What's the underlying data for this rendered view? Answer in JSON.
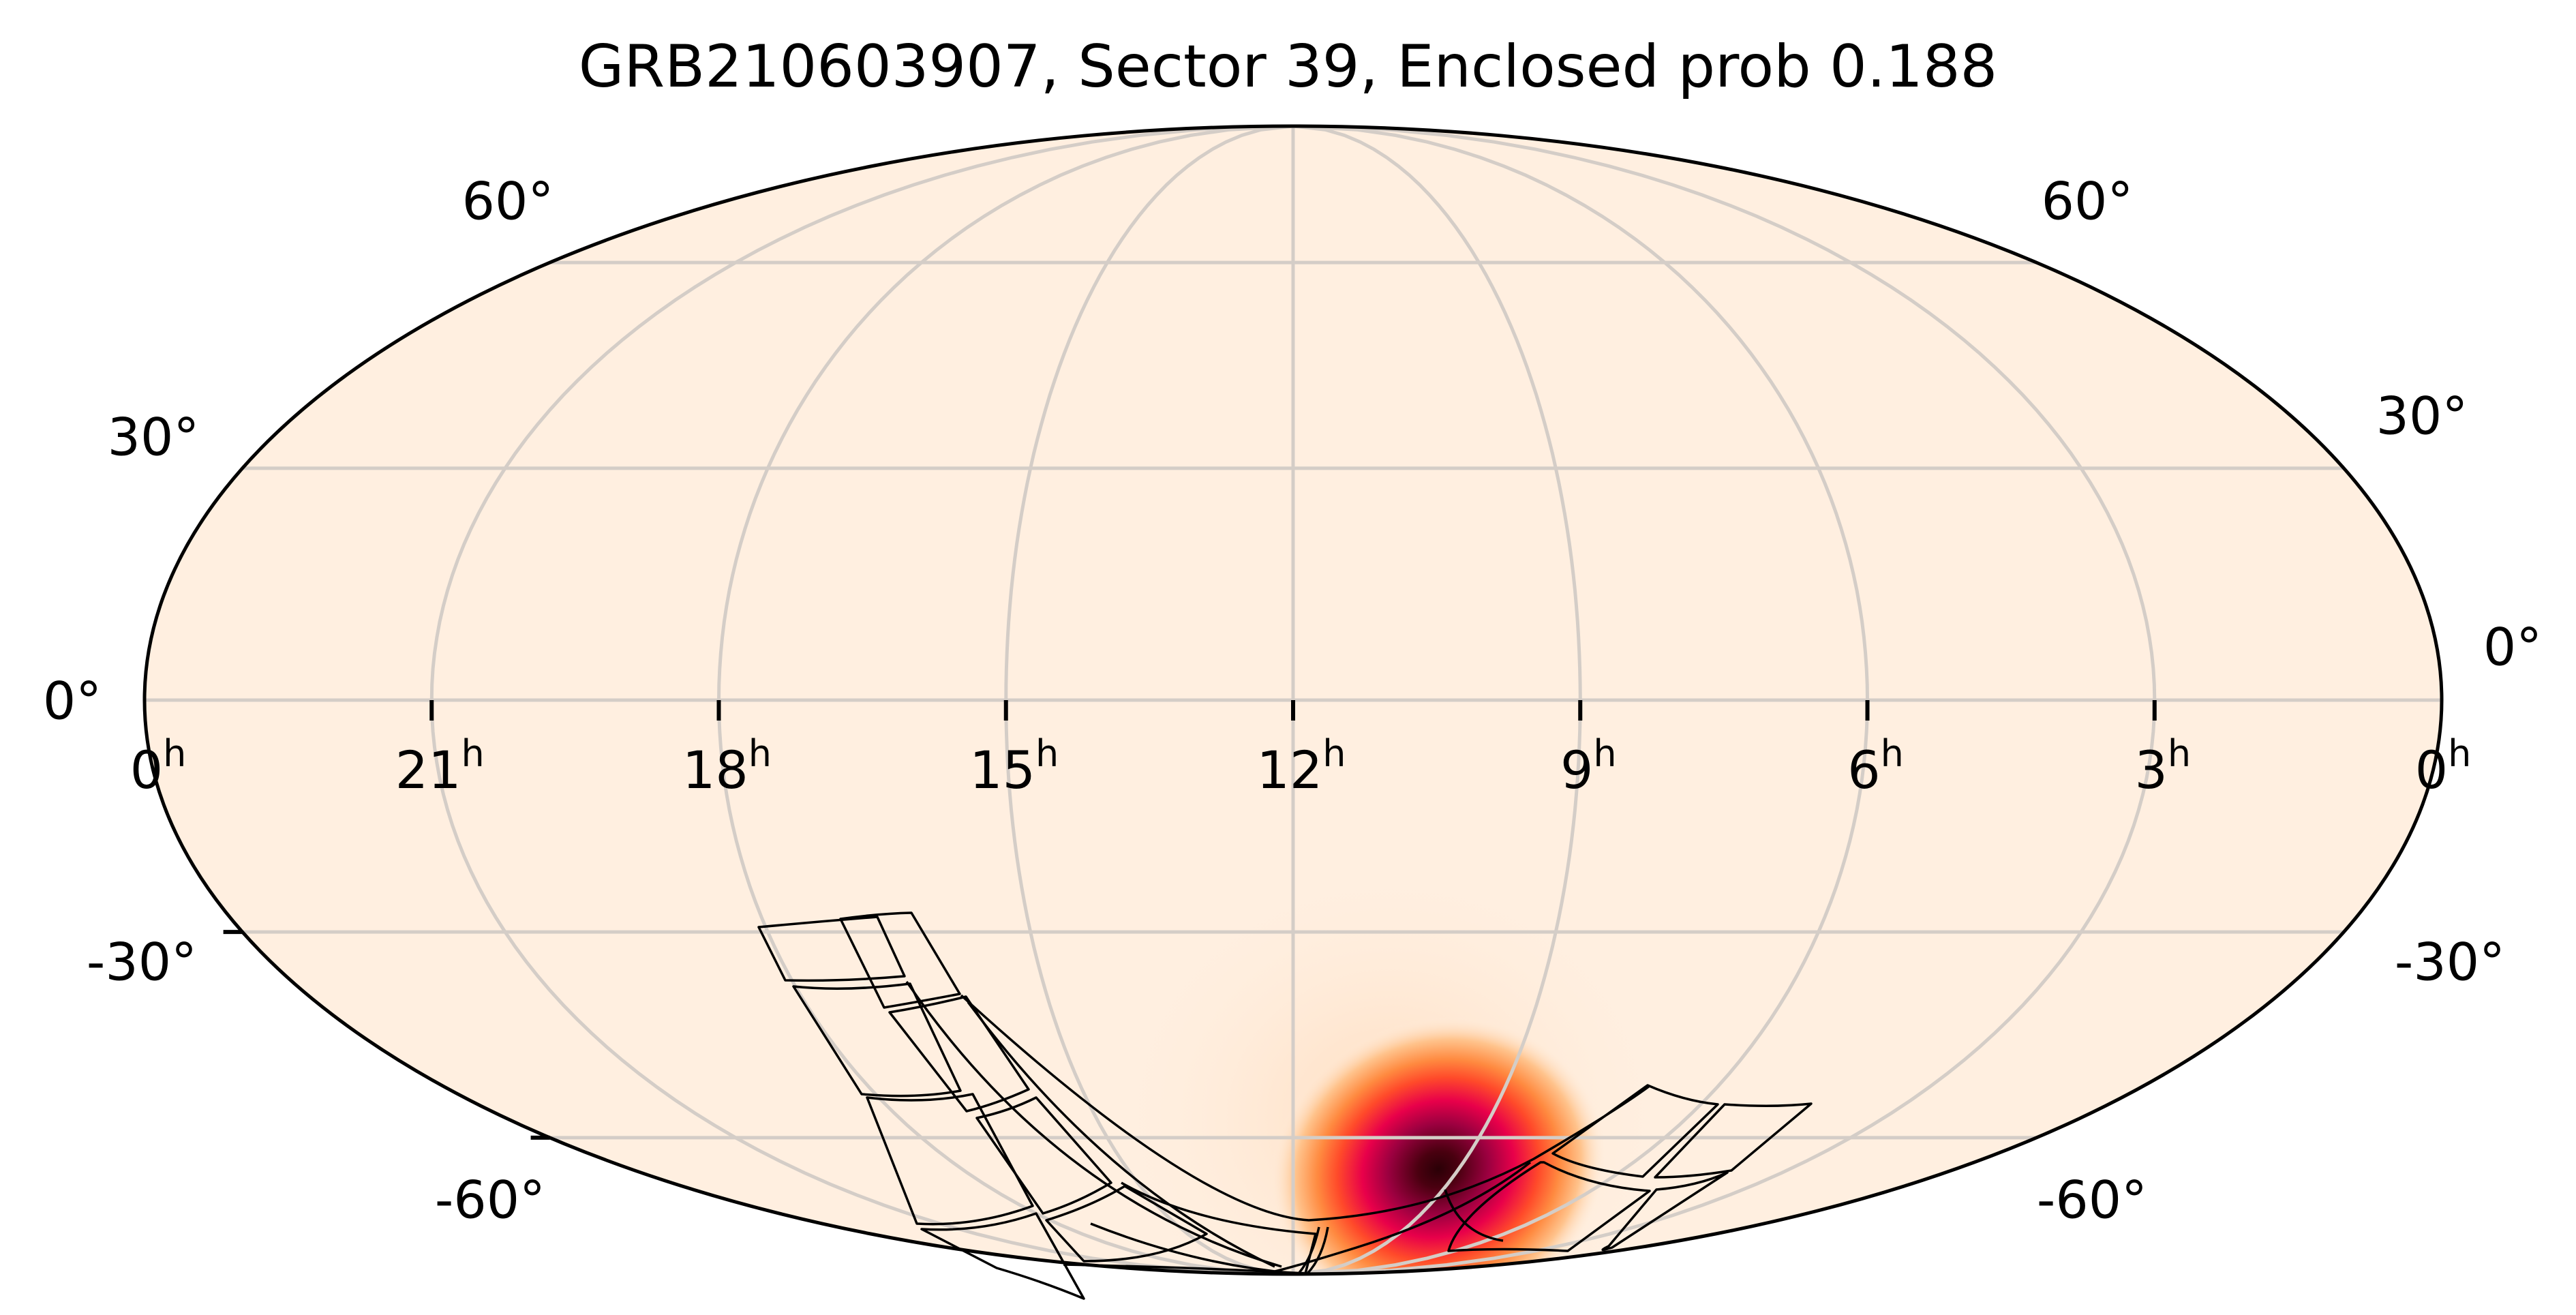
{
  "chart_data": {
    "type": "heatmap",
    "projection": "mollweide",
    "title": "GRB210603907, Sector 39, Enclosed prob 0.188",
    "xlabel": "",
    "ylabel": "",
    "ra_tick_labels": [
      "0h",
      "21h",
      "18h",
      "15h",
      "12h",
      "9h",
      "6h",
      "3h",
      "0h"
    ],
    "ra_tick_values_hours": [
      0,
      21,
      18,
      15,
      12,
      9,
      6,
      3,
      0
    ],
    "dec_tick_labels_left": [
      "60°",
      "30°",
      "0°",
      "-30°",
      "-60°"
    ],
    "dec_tick_labels_right": [
      "60°",
      "30°",
      "0°",
      "-30°",
      "-60°"
    ],
    "dec_gridlines_deg": [
      60,
      30,
      0,
      -30,
      -60
    ],
    "grid": true,
    "colormap": "light-peach → orange → red → magenta → near-black",
    "background_color": "#FFEFE0",
    "grid_color": "#D4CDC7",
    "probability_peak": {
      "ra_hours": 10.4,
      "dec_deg": -61,
      "description": "localization probability maximum"
    },
    "sector_footprint": {
      "sector": 39,
      "cameras_outlined": 4,
      "ccds_per_camera": 4,
      "region": "southern sky, dec -25° to -90°"
    },
    "enclosed_probability": 0.188
  },
  "labels": {
    "title": "GRB210603907, Sector 39, Enclosed prob 0.188",
    "ra": [
      {
        "num": "0",
        "sup": "h"
      },
      {
        "num": "21",
        "sup": "h"
      },
      {
        "num": "18",
        "sup": "h"
      },
      {
        "num": "15",
        "sup": "h"
      },
      {
        "num": "12",
        "sup": "h"
      },
      {
        "num": "9",
        "sup": "h"
      },
      {
        "num": "6",
        "sup": "h"
      },
      {
        "num": "3",
        "sup": "h"
      },
      {
        "num": "0",
        "sup": "h"
      }
    ],
    "dec_left": [
      "60°",
      "30°",
      "0°",
      "-30°",
      "-60°"
    ],
    "dec_right": [
      "60°",
      "30°",
      "0°",
      "-30°",
      "-60°"
    ]
  }
}
